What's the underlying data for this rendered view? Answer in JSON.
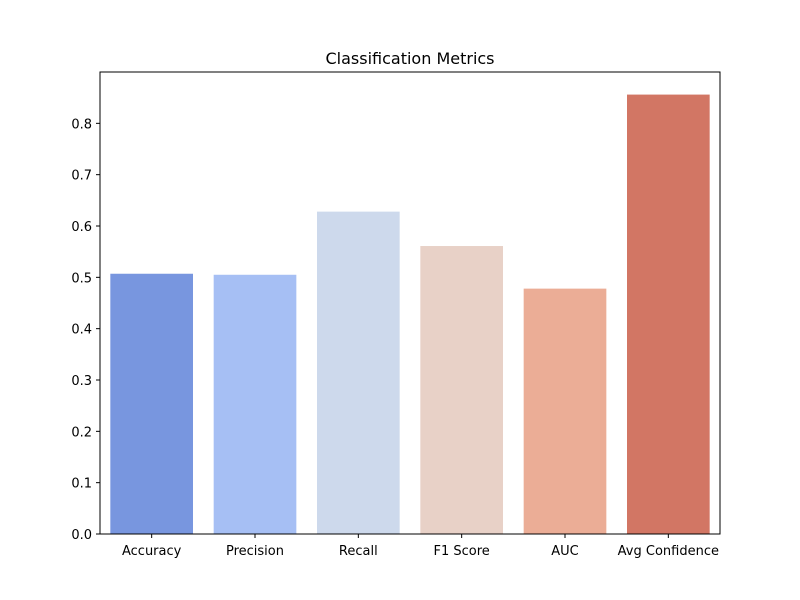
{
  "chart_data": {
    "type": "bar",
    "title": "Classification Metrics",
    "xlabel": "",
    "ylabel": "",
    "categories": [
      "Accuracy",
      "Precision",
      "Recall",
      "F1 Score",
      "AUC",
      "Avg Confidence"
    ],
    "values": [
      0.507,
      0.505,
      0.628,
      0.561,
      0.478,
      0.856
    ],
    "colors": [
      "#7896df",
      "#a6bff4",
      "#cdd9ec",
      "#e8d1c7",
      "#ebad96",
      "#d27664"
    ],
    "ylim": [
      0,
      0.9
    ],
    "yticks": [
      0.0,
      0.1,
      0.2,
      0.3,
      0.4,
      0.5,
      0.6,
      0.7,
      0.8
    ],
    "ytick_labels": [
      "0.0",
      "0.1",
      "0.2",
      "0.3",
      "0.4",
      "0.5",
      "0.6",
      "0.7",
      "0.8"
    ],
    "grid": false,
    "legend": "none"
  }
}
